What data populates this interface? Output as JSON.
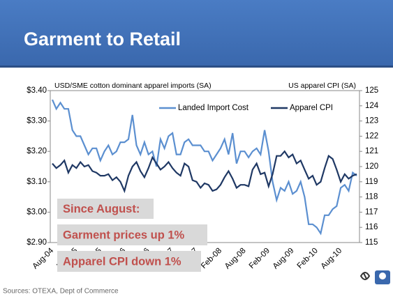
{
  "header": {
    "title": "Garment to Retail"
  },
  "chart_data": {
    "type": "line",
    "y_axis_label": "USD/SME cotton dominant apparel imports (SA)",
    "y2_axis_label": "US apparel CPI (SA)",
    "categories": [
      "Aug-04",
      null,
      null,
      null,
      null,
      null,
      "Feb-05",
      null,
      null,
      null,
      null,
      null,
      "Aug-05",
      null,
      null,
      null,
      null,
      null,
      "Feb-06",
      null,
      null,
      null,
      null,
      null,
      "Aug-06",
      null,
      null,
      null,
      null,
      null,
      "Feb-07",
      null,
      null,
      null,
      null,
      null,
      "Aug-07",
      null,
      null,
      null,
      null,
      null,
      "Feb-08",
      null,
      null,
      null,
      null,
      null,
      "Aug-08",
      null,
      null,
      null,
      null,
      null,
      "Feb-09",
      null,
      null,
      null,
      null,
      null,
      "Aug-09",
      null,
      null,
      null,
      null,
      null,
      "Feb-10",
      null,
      null,
      null,
      null,
      null,
      "Aug-10",
      null,
      null,
      null,
      null
    ],
    "series": [
      {
        "name": "Landed Import Cost",
        "color": "#5b8fd0",
        "axis": "y",
        "values": [
          3.37,
          3.34,
          3.36,
          3.34,
          3.34,
          3.27,
          3.25,
          3.25,
          3.22,
          3.19,
          3.21,
          3.21,
          3.17,
          3.2,
          3.22,
          3.19,
          3.2,
          3.23,
          3.23,
          3.24,
          3.32,
          3.22,
          3.19,
          3.23,
          3.19,
          3.2,
          3.15,
          3.24,
          3.21,
          3.25,
          3.26,
          3.19,
          3.19,
          3.23,
          3.24,
          3.22,
          3.22,
          3.22,
          3.2,
          3.2,
          3.17,
          3.19,
          3.21,
          3.24,
          3.19,
          3.26,
          3.16,
          3.2,
          3.2,
          3.18,
          3.2,
          3.21,
          3.19,
          3.27,
          3.2,
          3.1,
          3.04,
          3.08,
          3.07,
          3.1,
          3.06,
          3.07,
          3.1,
          3.05,
          2.96,
          2.96,
          2.95,
          2.93,
          2.99,
          2.99,
          3.01,
          3.02,
          3.08,
          3.09,
          3.07,
          3.13,
          3.12
        ]
      },
      {
        "name": "Apparel CPI",
        "color": "#1f3864",
        "axis": "y2",
        "values": [
          120.2,
          119.9,
          120.1,
          120.4,
          119.6,
          120.1,
          119.9,
          120.3,
          120.0,
          120.1,
          119.7,
          119.6,
          119.4,
          119.4,
          119.5,
          119.1,
          119.3,
          119.0,
          118.4,
          119.4,
          120.0,
          120.3,
          119.7,
          119.3,
          119.9,
          120.6,
          120.2,
          119.8,
          120.0,
          120.3,
          119.9,
          119.6,
          119.4,
          120.2,
          120.0,
          119.1,
          119.0,
          118.6,
          118.9,
          118.8,
          118.4,
          118.5,
          118.8,
          119.3,
          119.7,
          119.2,
          118.6,
          118.8,
          118.8,
          118.7,
          119.8,
          120.2,
          119.5,
          119.6,
          118.7,
          119.5,
          120.7,
          120.7,
          121.0,
          120.6,
          120.8,
          120.2,
          120.4,
          119.8,
          119.2,
          119.4,
          118.8,
          119.0,
          119.9,
          120.7,
          120.5,
          119.8,
          119.0,
          119.5,
          119.2,
          119.4,
          119.5
        ]
      }
    ],
    "ylim": [
      2.9,
      3.4
    ],
    "yticks": [
      {
        "value": 2.9,
        "label": "$2.90"
      },
      {
        "value": 3.0,
        "label": "$3.00"
      },
      {
        "value": 3.1,
        "label": "$3.10"
      },
      {
        "value": 3.2,
        "label": "$3.20"
      },
      {
        "value": 3.3,
        "label": "$3.30"
      },
      {
        "value": 3.4,
        "label": "$3.40"
      }
    ],
    "y2lim": [
      115,
      125
    ],
    "y2ticks": [
      115,
      116,
      117,
      118,
      119,
      120,
      121,
      122,
      123,
      124,
      125
    ],
    "legend": "top-right",
    "annotations": [
      "Since August:",
      "Garment prices up 1%",
      "Apparel CPI down 1%"
    ]
  },
  "footer": {
    "source": "Sources: OTEXA, Dept of Commerce"
  }
}
